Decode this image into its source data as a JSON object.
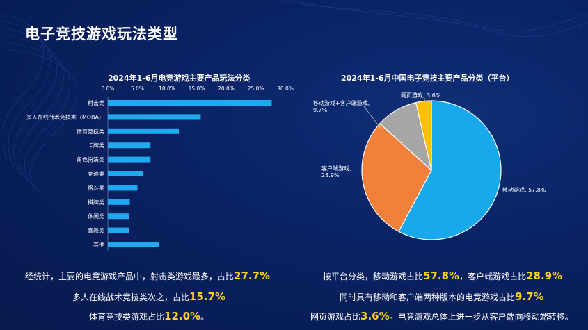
{
  "page_title": "电子竞技游戏玩法类型",
  "chart_data": [
    {
      "type": "bar",
      "orientation": "horizontal",
      "title": "2024年1-6月电竞游戏主要产品玩法分类",
      "categories": [
        "射击类",
        "多人在线战术竞技类（MOBA）",
        "体育竞技类",
        "卡牌类",
        "角色扮演类",
        "竞速类",
        "格斗类",
        "棋牌类",
        "休闲类",
        "音舞类",
        "其他"
      ],
      "values": [
        27.7,
        15.7,
        12.0,
        7.2,
        7.2,
        6.0,
        5.0,
        3.7,
        3.6,
        3.6,
        8.6
      ],
      "xlim": [
        0,
        30
      ],
      "ticks": [
        "0.0%",
        "5.0%",
        "10.0%",
        "15.0%",
        "20.0%",
        "25.0%",
        "30.0%"
      ],
      "axis_position": "top",
      "bar_color": "#1ea9f0"
    },
    {
      "type": "pie",
      "title": "2024年1-6月中国电子竞技主要产品分类（平台）",
      "slices": [
        {
          "label": "移动游戏, 57.8%",
          "value": 57.8,
          "color": "#17a9ec"
        },
        {
          "label": "客户端游戏, 28.9%",
          "value": 28.9,
          "color": "#f0803a"
        },
        {
          "label": "移动游戏+客户端游戏, 9.7%",
          "value": 9.7,
          "color": "#a6a6a6"
        },
        {
          "label": "网页游戏, 3.6%",
          "value": 3.6,
          "color": "#ffc000"
        }
      ]
    }
  ],
  "summary_left": [
    {
      "text": "经统计，主要的电竞游戏产品中，射击类游戏最多，占比",
      "highlight": "27.7%"
    },
    {
      "text": "多人在线战术竞技类次之，占比",
      "highlight": "15.7%"
    },
    {
      "text": "体育竞技类游戏占比",
      "highlight": "12.0%",
      "suffix": "。"
    }
  ],
  "summary_right": [
    {
      "text": "按平台分类，移动游戏占比",
      "highlight": "57.8%",
      "text2": "，客户端游戏占比",
      "highlight2": "28.9%"
    },
    {
      "text": "同时具有移动和客户端两种版本的电竞游戏占比",
      "highlight": "9.7%"
    },
    {
      "text": "网页游戏占比",
      "highlight": "3.6%",
      "text2": "。电竞游戏总体上进一步从客户端向移动端转移。"
    }
  ],
  "colors": {
    "accent": "#ffd21f",
    "background": "#0a2263"
  }
}
